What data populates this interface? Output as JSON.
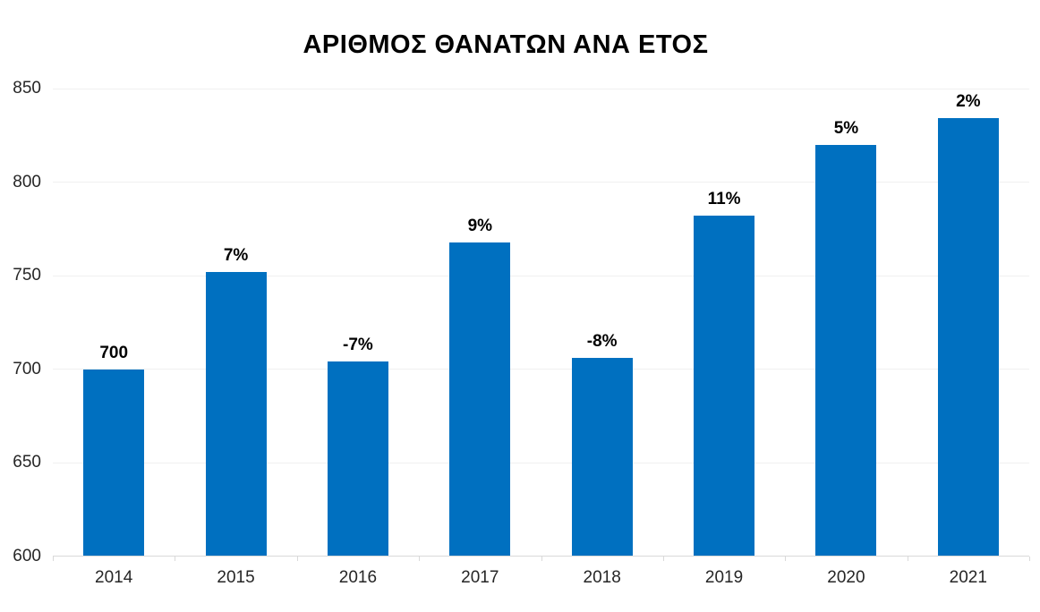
{
  "chart_data": {
    "type": "bar",
    "title": "ΑΡΙΘΜΟΣ ΘΑΝΑΤΩΝ ΑΝΑ ΕΤΟΣ",
    "categories": [
      "2014",
      "2015",
      "2016",
      "2017",
      "2018",
      "2019",
      "2020",
      "2021"
    ],
    "values": [
      700,
      752,
      704,
      768,
      706,
      782,
      820,
      834
    ],
    "bar_labels": [
      "700",
      "7%",
      "-7%",
      "9%",
      "-8%",
      "11%",
      "5%",
      "2%"
    ],
    "series_name": "",
    "xlabel": "",
    "ylabel": "",
    "ylim": [
      600,
      850
    ],
    "yticks": [
      600,
      650,
      700,
      750,
      800,
      850
    ],
    "grid": true,
    "legend_position": "none",
    "bar_color": "#0070C0",
    "gridline_color": "#F0F0F0",
    "axis_line_color": "#D9D9D9",
    "axis_text_color": "#262626",
    "data_label_color": "#000000",
    "background_color": "#FFFFFF"
  }
}
